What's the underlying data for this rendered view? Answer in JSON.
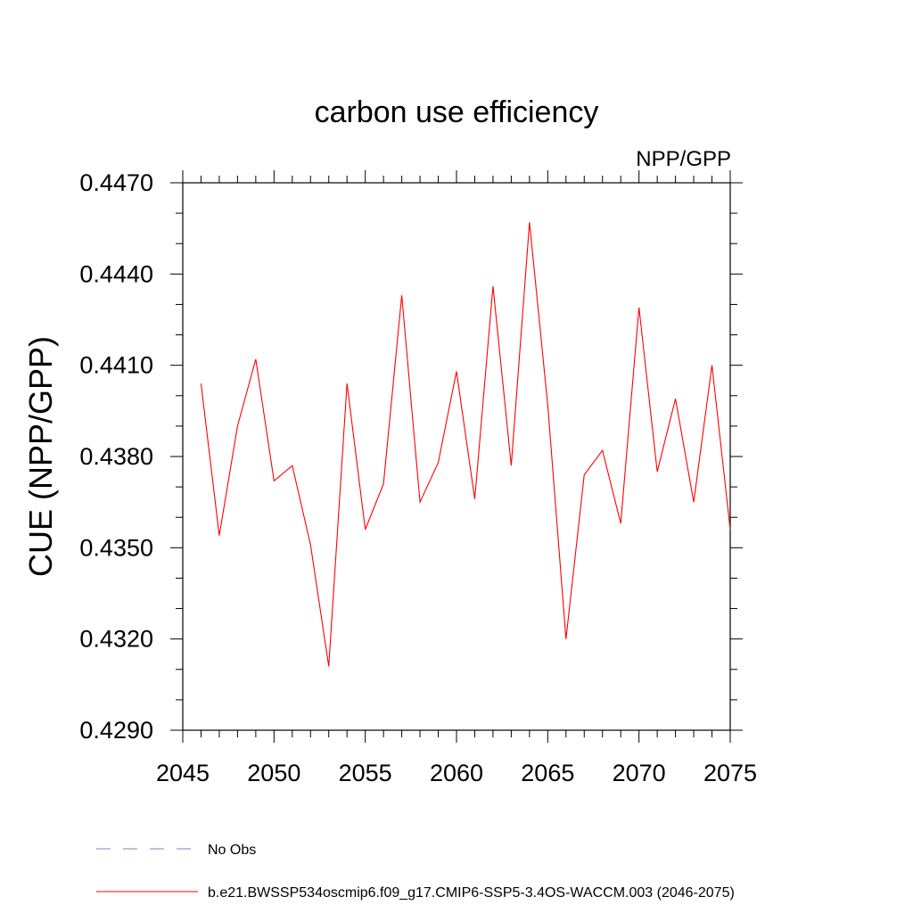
{
  "chart_data": {
    "type": "line",
    "title": "carbon use efficiency",
    "subtitle": "NPP/GPP",
    "xlabel": "",
    "ylabel": "CUE  (NPP/GPP)",
    "xlim": [
      2045,
      2075
    ],
    "ylim": [
      0.429,
      0.447
    ],
    "x_ticks": [
      2045,
      2050,
      2055,
      2060,
      2065,
      2070,
      2075
    ],
    "x_tick_labels": [
      "2045",
      "2050",
      "2055",
      "2060",
      "2065",
      "2070",
      "2075"
    ],
    "y_ticks": [
      0.429,
      0.432,
      0.435,
      0.438,
      0.441,
      0.444,
      0.447
    ],
    "y_tick_labels": [
      "0.4290",
      "0.4320",
      "0.4350",
      "0.4380",
      "0.4410",
      "0.4440",
      "0.4470"
    ],
    "grid": false,
    "legend_placement": "bottom",
    "series": [
      {
        "name": "b.e21.BWSSP534oscmip6.f09_g17.CMIP6-SSP5-3.4OS-WACCM.003 (2046-2075)",
        "color": "#ff0000",
        "line_style": "solid",
        "x": [
          2046,
          2047,
          2048,
          2049,
          2050,
          2051,
          2052,
          2053,
          2054,
          2055,
          2056,
          2057,
          2058,
          2059,
          2060,
          2061,
          2062,
          2063,
          2064,
          2065,
          2066,
          2067,
          2068,
          2069,
          2070,
          2071,
          2072,
          2073,
          2074,
          2075
        ],
        "y": [
          0.4404,
          0.4354,
          0.439,
          0.4412,
          0.4372,
          0.4377,
          0.4351,
          0.4311,
          0.4404,
          0.4356,
          0.4371,
          0.4433,
          0.4365,
          0.4378,
          0.4408,
          0.4366,
          0.4436,
          0.4377,
          0.4457,
          0.4397,
          0.432,
          0.4374,
          0.4382,
          0.4358,
          0.4429,
          0.4375,
          0.4399,
          0.4365,
          0.441,
          0.4356
        ]
      }
    ],
    "legend": [
      {
        "label": "No Obs",
        "color": "#7f7fc0",
        "line_style": "dashed"
      },
      {
        "label": "b.e21.BWSSP534oscmip6.f09_g17.CMIP6-SSP5-3.4OS-WACCM.003 (2046-2075)",
        "color": "#ff0000",
        "line_style": "solid"
      }
    ]
  }
}
